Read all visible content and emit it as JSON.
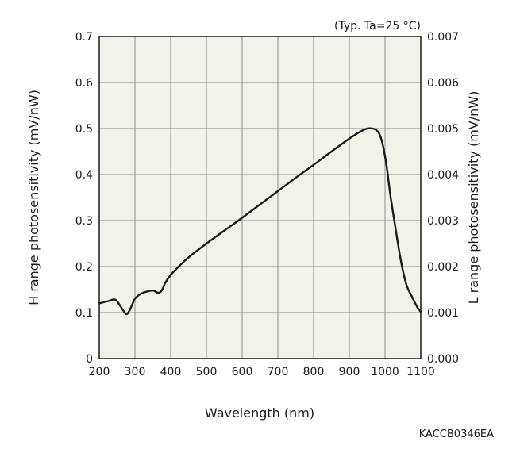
{
  "chart_data": {
    "type": "line",
    "condition_note": "(Typ. Ta=25 °C)",
    "xlabel": "Wavelength (nm)",
    "ylabel": "H range photosensitivity (mV/nW)",
    "ylabel_right": "L range photosensitivity (mV/nW)",
    "xlim": [
      200,
      1100
    ],
    "ylim": [
      0,
      0.7
    ],
    "ylim_right": [
      0,
      0.007
    ],
    "x_ticks": [
      "200",
      "300",
      "400",
      "500",
      "600",
      "700",
      "800",
      "900",
      "1000",
      "1100"
    ],
    "y_ticks": [
      "0",
      "0.1",
      "0.2",
      "0.3",
      "0.4",
      "0.5",
      "0.6",
      "0.7"
    ],
    "y_ticks_right": [
      "0.000",
      "0.001",
      "0.002",
      "0.003",
      "0.004",
      "0.005",
      "0.006",
      "0.007"
    ],
    "grid": true,
    "background_color": "#f2f2ea",
    "line_color": "#1a1a1a",
    "series": [
      {
        "x": [
          200,
          225,
          245,
          260,
          275,
          285,
          300,
          315,
          330,
          350,
          365,
          375,
          385,
          400,
          425,
          450,
          500,
          550,
          600,
          650,
          700,
          750,
          800,
          850,
          900,
          930,
          950,
          965,
          975,
          985,
          995,
          1005,
          1015,
          1030,
          1045,
          1060,
          1075,
          1090,
          1100
        ],
        "y": [
          0.12,
          0.125,
          0.128,
          0.113,
          0.097,
          0.105,
          0.13,
          0.14,
          0.145,
          0.148,
          0.143,
          0.148,
          0.165,
          0.182,
          0.202,
          0.22,
          0.25,
          0.278,
          0.306,
          0.335,
          0.364,
          0.393,
          0.421,
          0.45,
          0.478,
          0.493,
          0.5,
          0.5,
          0.497,
          0.487,
          0.46,
          0.415,
          0.355,
          0.28,
          0.21,
          0.16,
          0.135,
          0.112,
          0.102
        ]
      }
    ]
  },
  "figure_code": "KACCB0346EA"
}
